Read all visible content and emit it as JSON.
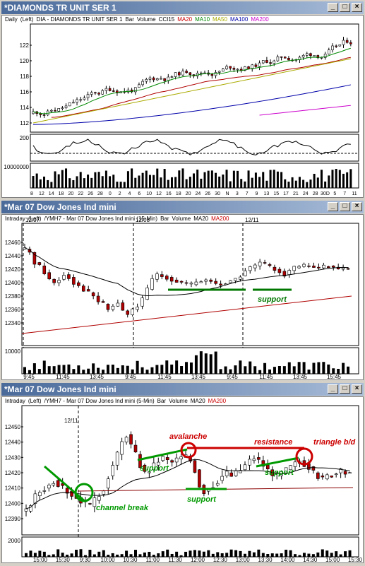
{
  "windows": [
    {
      "title": "*DIAMONDS TR UNIT SER 1",
      "legend": [
        {
          "text": "Daily",
          "color": "#000000"
        },
        {
          "text": "(Left)",
          "color": "#000000"
        },
        {
          "text": "DIA - DIAMONDS TR UNIT SER 1",
          "color": "#000000"
        },
        {
          "text": "Bar",
          "color": "#000000"
        },
        {
          "text": "Volume",
          "color": "#000000"
        },
        {
          "text": "CCI15",
          "color": "#000000"
        },
        {
          "text": "MA20",
          "color": "#cc0000"
        },
        {
          "text": "MA10",
          "color": "#008800"
        },
        {
          "text": "MA50",
          "color": "#aaaa00"
        },
        {
          "text": "MA100",
          "color": "#0000aa"
        },
        {
          "text": "MA200",
          "color": "#cc00cc"
        }
      ],
      "y_ticks": [
        "122",
        "120",
        "118",
        "116",
        "114",
        "112"
      ],
      "cci_ticks": [
        "200"
      ],
      "vol_ticks": [
        "10000000"
      ],
      "x_ticks": [
        "8",
        "12",
        "14",
        "18",
        "20",
        "22",
        "26",
        "28",
        "0",
        "2",
        "4",
        "6",
        "10",
        "12",
        "16",
        "18",
        "20",
        "24",
        "26",
        "30",
        "N",
        "3",
        "7",
        "9",
        "13",
        "15",
        "17",
        "21",
        "24",
        "28",
        "30D",
        "5",
        "7",
        "11"
      ]
    },
    {
      "title": "*Mar 07  Dow Jones Ind mini",
      "legend": [
        {
          "text": "Intraday",
          "color": "#000000"
        },
        {
          "text": "(Left)",
          "color": "#000000"
        },
        {
          "text": "/YMH7 - Mar 07 Dow Jones Ind mini (15-Min)",
          "color": "#000000"
        },
        {
          "text": "Bar",
          "color": "#000000"
        },
        {
          "text": "Volume",
          "color": "#000000"
        },
        {
          "text": "MA20",
          "color": "#000000"
        },
        {
          "text": "MA200",
          "color": "#cc0000"
        }
      ],
      "date_markers": [
        "12/07",
        "12/08",
        "12/11"
      ],
      "y_ticks": [
        "12460",
        "12440",
        "12420",
        "12400",
        "12380",
        "12360",
        "12340"
      ],
      "vol_ticks": [
        "10000"
      ],
      "x_ticks": [
        "9:45",
        "11:45",
        "13:45",
        "9:45",
        "11:45",
        "13:45",
        "9:45",
        "11:45",
        "13:45",
        "15:45"
      ],
      "annotations": {
        "support": "support"
      }
    },
    {
      "title": "*Mar 07  Dow Jones Ind mini",
      "legend": [
        {
          "text": "Intraday",
          "color": "#000000"
        },
        {
          "text": "(Left)",
          "color": "#000000"
        },
        {
          "text": "/YMH7 - Mar 07 Dow Jones Ind mini (5-Min)",
          "color": "#000000"
        },
        {
          "text": "Bar",
          "color": "#000000"
        },
        {
          "text": "Volume",
          "color": "#000000"
        },
        {
          "text": "MA20",
          "color": "#000000"
        },
        {
          "text": "MA200",
          "color": "#cc0000"
        }
      ],
      "date_markers": [
        "12/11"
      ],
      "y_ticks": [
        "12450",
        "12440",
        "12430",
        "12420",
        "12410",
        "12400",
        "12390"
      ],
      "vol_ticks": [
        "2000"
      ],
      "x_ticks": [
        "15:00",
        "15:30",
        "9:30",
        "10:00",
        "10:30",
        "11:00",
        "11:30",
        "12:00",
        "12:30",
        "13:00",
        "13:30",
        "14:00",
        "14:30",
        "15:00",
        "15:30"
      ],
      "annotations": {
        "channel_break": "channel break",
        "support_1": "support",
        "avalanche": "avalanche",
        "support_2": "support",
        "resistance": "resistance",
        "support_3": "support",
        "triangle": "triangle b/d"
      }
    }
  ],
  "colors": {
    "up": "#ffffff",
    "down": "#b00000",
    "annot_red": "#cc0000",
    "annot_green": "#008800"
  }
}
